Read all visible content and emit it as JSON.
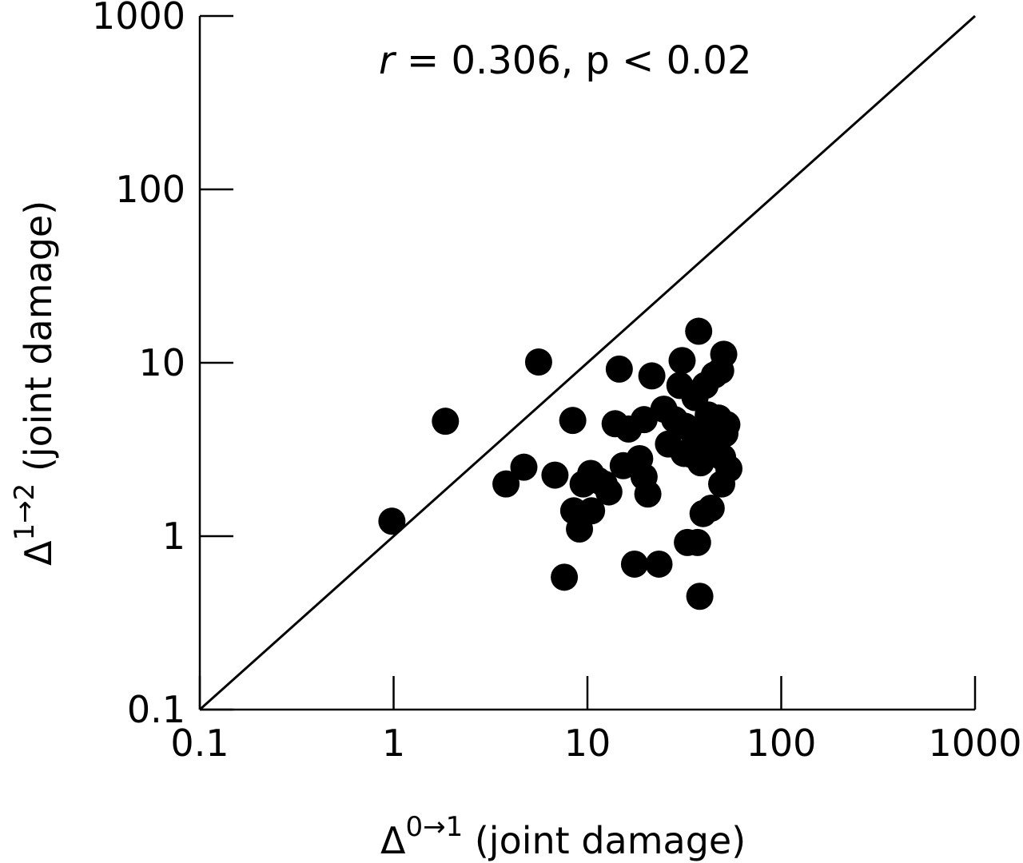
{
  "chart_data": {
    "type": "scatter",
    "title": "",
    "annotation": {
      "r_symbol": "r",
      "rest": " = 0.306, p < 0.02"
    },
    "xlabel": {
      "symbol": "Δ",
      "superscript": "0→1",
      "text": " (joint damage)"
    },
    "ylabel": {
      "symbol": "Δ",
      "superscript": "1→2",
      "text": " (joint damage)"
    },
    "xscale": "log",
    "yscale": "log",
    "xlim": [
      0.1,
      1000
    ],
    "ylim": [
      0.1,
      1000
    ],
    "x_ticks": [
      0.1,
      1,
      10,
      100,
      1000
    ],
    "x_tick_labels": [
      "0.1",
      "1",
      "10",
      "100",
      "1000"
    ],
    "y_ticks": [
      0.1,
      1,
      10,
      100,
      1000
    ],
    "y_tick_labels": [
      "0.1",
      "1",
      "10",
      "100",
      "1000"
    ],
    "grid": false,
    "reference_line": {
      "from": [
        0.1,
        0.1
      ],
      "to": [
        1000,
        1000
      ]
    },
    "series": [
      {
        "marker_color": "#000000",
        "points": [
          [
            0.98,
            1.22
          ],
          [
            1.85,
            4.6
          ],
          [
            3.8,
            2.0
          ],
          [
            4.7,
            2.5
          ],
          [
            5.6,
            10.1
          ],
          [
            6.8,
            2.25
          ],
          [
            7.6,
            0.58
          ],
          [
            8.4,
            4.65
          ],
          [
            8.5,
            1.4
          ],
          [
            9.1,
            1.1
          ],
          [
            9.5,
            2.0
          ],
          [
            10.4,
            2.3
          ],
          [
            10.5,
            1.4
          ],
          [
            11.3,
            2.1
          ],
          [
            12.2,
            2.0
          ],
          [
            12.9,
            1.8
          ],
          [
            13.9,
            4.45
          ],
          [
            14.6,
            9.2
          ],
          [
            15.3,
            2.55
          ],
          [
            16.3,
            4.15
          ],
          [
            17.5,
            0.69
          ],
          [
            18.6,
            2.8
          ],
          [
            19.6,
            2.2
          ],
          [
            20.5,
            1.75
          ],
          [
            19.6,
            4.7
          ],
          [
            21.5,
            8.4
          ],
          [
            23.4,
            0.69
          ],
          [
            24.8,
            5.4
          ],
          [
            26.2,
            3.4
          ],
          [
            28.2,
            4.7
          ],
          [
            30.8,
            10.3
          ],
          [
            30.0,
            7.4
          ],
          [
            32.0,
            4.3
          ],
          [
            31.5,
            3.0
          ],
          [
            32.8,
            0.92
          ],
          [
            34.6,
            2.95
          ],
          [
            35.9,
            6.3
          ],
          [
            36.0,
            3.7
          ],
          [
            37.5,
            15.2
          ],
          [
            37.0,
            0.92
          ],
          [
            38.0,
            0.45
          ],
          [
            38.4,
            2.65
          ],
          [
            39.5,
            1.35
          ],
          [
            40.5,
            7.4
          ],
          [
            42.0,
            5.0
          ],
          [
            43.5,
            1.45
          ],
          [
            44.5,
            4.3
          ],
          [
            45.2,
            8.5
          ],
          [
            46.3,
            3.2
          ],
          [
            47.5,
            4.8
          ],
          [
            48.7,
            9.0
          ],
          [
            49.3,
            2.0
          ],
          [
            49.8,
            2.85
          ],
          [
            50.5,
            11.2
          ],
          [
            51.2,
            3.9
          ],
          [
            52.4,
            4.4
          ],
          [
            53.7,
            2.45
          ],
          [
            36.5,
            3.6
          ],
          [
            41.0,
            3.9
          ]
        ]
      }
    ]
  }
}
